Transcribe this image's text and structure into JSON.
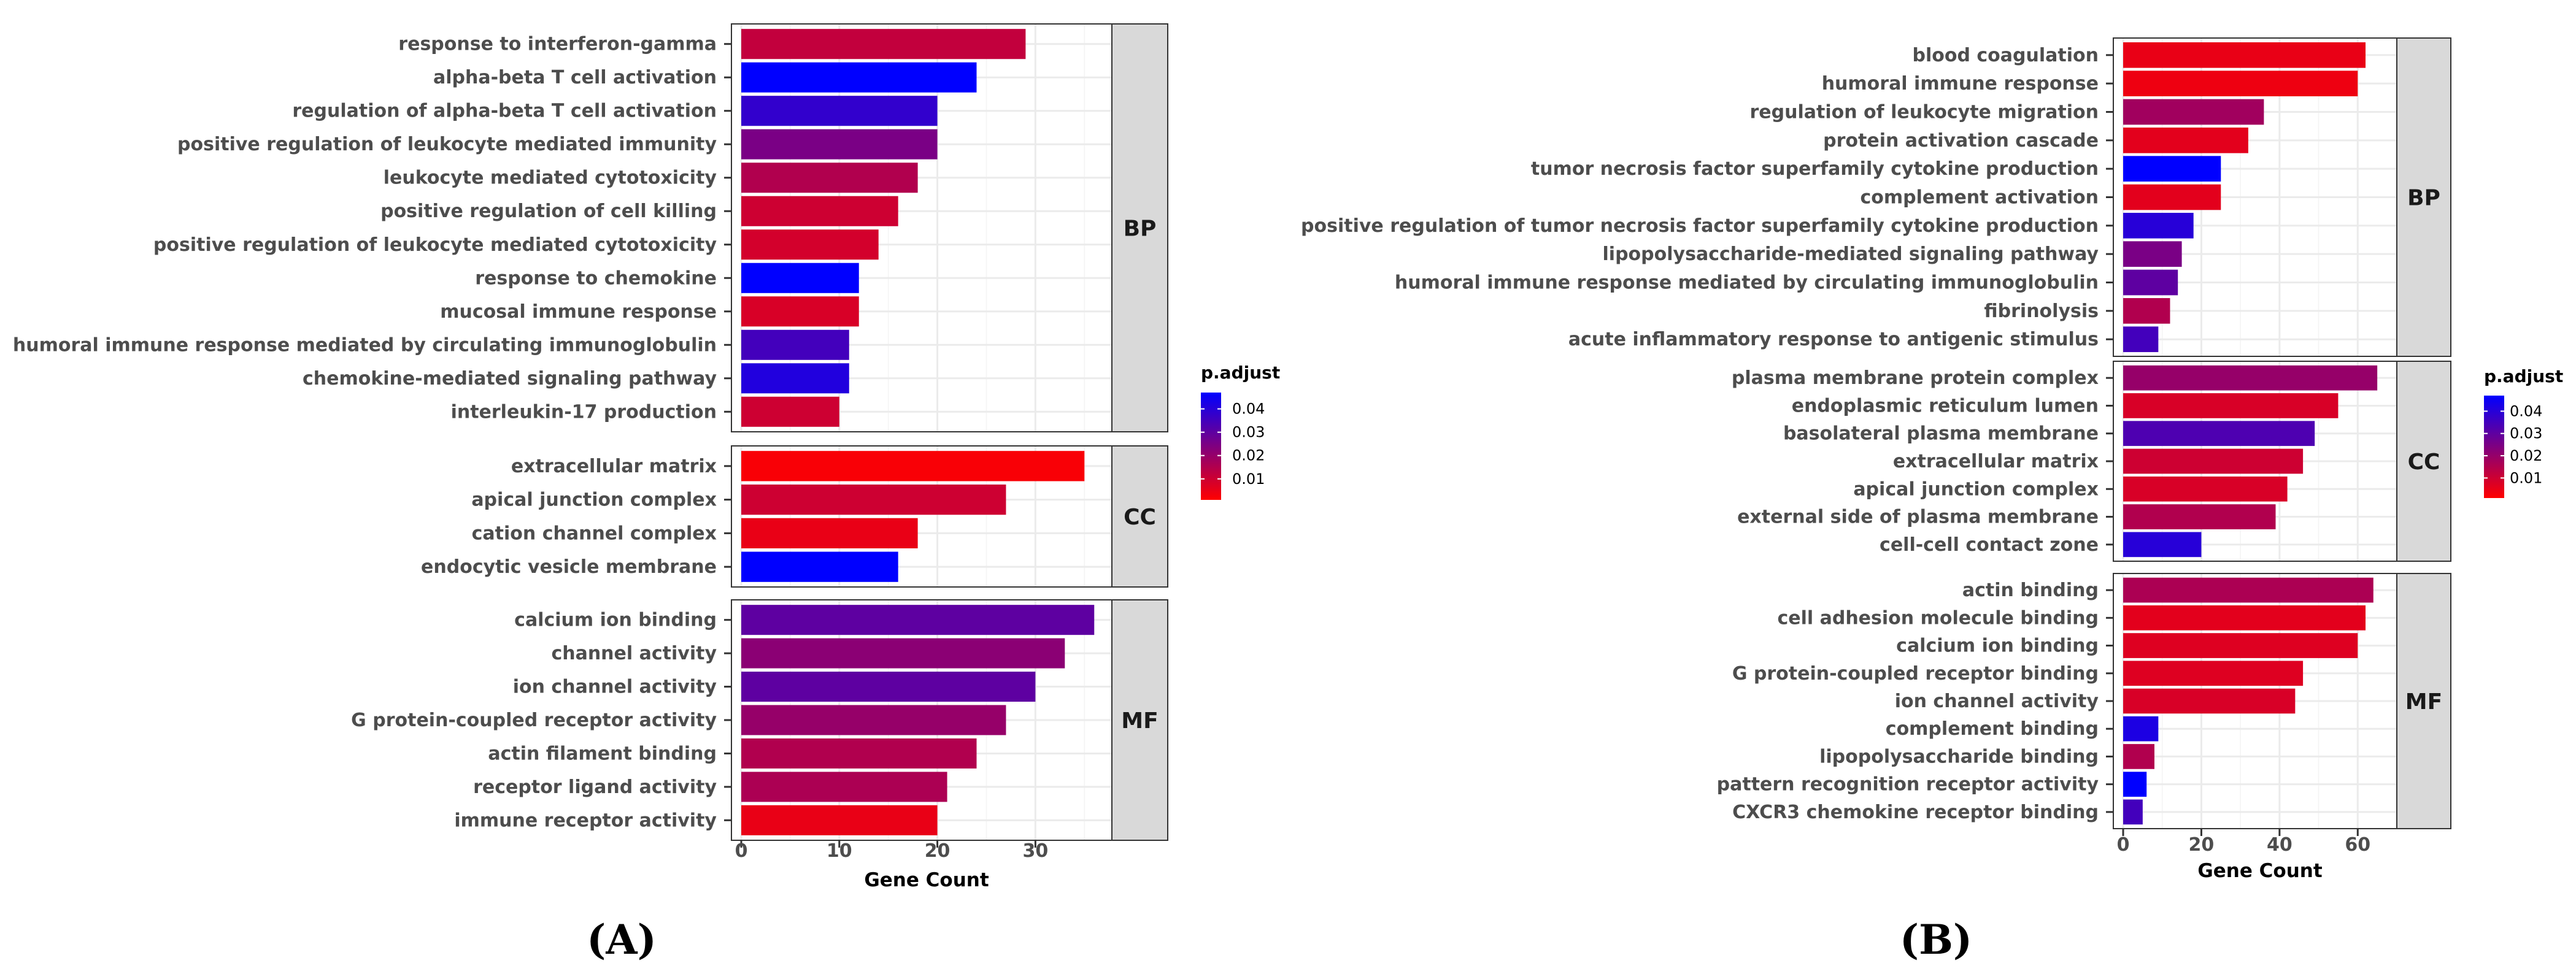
{
  "colors": {
    "low": "#ff0000",
    "high": "#0000ff",
    "strip_fill": "#d9d9d9"
  },
  "chart_data": [
    {
      "type": "bar",
      "panel_label": "(A)",
      "orientation": "horizontal",
      "xlabel": "Gene Count",
      "xlim": [
        0,
        37.8
      ],
      "xticks": [
        0,
        10,
        20,
        30
      ],
      "color_legend": {
        "title": "p.adjust",
        "ticks": [
          0.04,
          0.03,
          0.02,
          0.01
        ],
        "tick_labels": [
          "0.04",
          "0.03",
          "0.02",
          "0.01"
        ],
        "range": [
          0.001,
          0.047
        ]
      },
      "facets": [
        {
          "name": "BP",
          "categories": [
            {
              "label": "response to interferon-gamma",
              "value": 29,
              "p_adjust": 0.012
            },
            {
              "label": "alpha-beta T cell activation",
              "value": 24,
              "p_adjust": 0.047
            },
            {
              "label": "regulation of alpha-beta T cell activation",
              "value": 20,
              "p_adjust": 0.038
            },
            {
              "label": "positive regulation of leukocyte mediated immunity",
              "value": 20,
              "p_adjust": 0.025
            },
            {
              "label": "leukocyte mediated cytotoxicity",
              "value": 18,
              "p_adjust": 0.015
            },
            {
              "label": "positive regulation of cell killing",
              "value": 16,
              "p_adjust": 0.01
            },
            {
              "label": "positive regulation of leukocyte mediated cytotoxicity",
              "value": 14,
              "p_adjust": 0.009
            },
            {
              "label": "response to chemokine",
              "value": 12,
              "p_adjust": 0.047
            },
            {
              "label": "mucosal immune response",
              "value": 12,
              "p_adjust": 0.008
            },
            {
              "label": "humoral immune response mediated by circulating immunoglobulin",
              "value": 11,
              "p_adjust": 0.035
            },
            {
              "label": "chemokine-mediated signaling pathway",
              "value": 11,
              "p_adjust": 0.041
            },
            {
              "label": "interleukin-17 production",
              "value": 10,
              "p_adjust": 0.01
            }
          ]
        },
        {
          "name": "CC",
          "categories": [
            {
              "label": "extracellular matrix",
              "value": 35,
              "p_adjust": 0.002
            },
            {
              "label": "apical junction complex",
              "value": 27,
              "p_adjust": 0.01
            },
            {
              "label": "cation channel complex",
              "value": 18,
              "p_adjust": 0.005
            },
            {
              "label": "endocytic vesicle membrane",
              "value": 16,
              "p_adjust": 0.047
            }
          ]
        },
        {
          "name": "MF",
          "categories": [
            {
              "label": "calcium ion binding",
              "value": 36,
              "p_adjust": 0.03
            },
            {
              "label": "channel activity",
              "value": 33,
              "p_adjust": 0.022
            },
            {
              "label": "ion channel activity",
              "value": 30,
              "p_adjust": 0.03
            },
            {
              "label": "G protein-coupled receptor activity",
              "value": 27,
              "p_adjust": 0.02
            },
            {
              "label": "actin filament binding",
              "value": 24,
              "p_adjust": 0.015
            },
            {
              "label": "receptor ligand activity",
              "value": 21,
              "p_adjust": 0.016
            },
            {
              "label": "immune receptor activity",
              "value": 20,
              "p_adjust": 0.005
            }
          ]
        }
      ]
    },
    {
      "type": "bar",
      "panel_label": "(B)",
      "orientation": "horizontal",
      "xlabel": "Gene Count",
      "xlim": [
        0,
        70
      ],
      "xticks": [
        0,
        20,
        40,
        60
      ],
      "color_legend": {
        "title": "p.adjust",
        "ticks": [
          0.04,
          0.03,
          0.02,
          0.01
        ],
        "tick_labels": [
          "0.04",
          "0.03",
          "0.02",
          "0.01"
        ],
        "range": [
          0.001,
          0.047
        ]
      },
      "facets": [
        {
          "name": "BP",
          "categories": [
            {
              "label": "blood coagulation",
              "value": 62,
              "p_adjust": 0.005
            },
            {
              "label": "humoral immune response",
              "value": 60,
              "p_adjust": 0.004
            },
            {
              "label": "regulation of leukocyte migration",
              "value": 36,
              "p_adjust": 0.018
            },
            {
              "label": "protein activation cascade",
              "value": 32,
              "p_adjust": 0.006
            },
            {
              "label": "tumor necrosis factor superfamily cytokine production",
              "value": 25,
              "p_adjust": 0.047
            },
            {
              "label": "complement activation",
              "value": 25,
              "p_adjust": 0.006
            },
            {
              "label": "positive regulation of tumor necrosis factor superfamily cytokine production",
              "value": 18,
              "p_adjust": 0.04
            },
            {
              "label": "lipopolysaccharide-mediated signaling pathway",
              "value": 15,
              "p_adjust": 0.025
            },
            {
              "label": "humoral immune response mediated by circulating immunoglobulin",
              "value": 14,
              "p_adjust": 0.03
            },
            {
              "label": "fibrinolysis",
              "value": 12,
              "p_adjust": 0.015
            },
            {
              "label": "acute inflammatory response to antigenic stimulus",
              "value": 9,
              "p_adjust": 0.035
            }
          ]
        },
        {
          "name": "CC",
          "categories": [
            {
              "label": "plasma membrane protein complex",
              "value": 65,
              "p_adjust": 0.02
            },
            {
              "label": "endoplasmic reticulum lumen",
              "value": 55,
              "p_adjust": 0.008
            },
            {
              "label": "basolateral plasma membrane",
              "value": 49,
              "p_adjust": 0.033
            },
            {
              "label": "extracellular matrix",
              "value": 46,
              "p_adjust": 0.01
            },
            {
              "label": "apical junction complex",
              "value": 42,
              "p_adjust": 0.008
            },
            {
              "label": "external side of plasma membrane",
              "value": 39,
              "p_adjust": 0.015
            },
            {
              "label": "cell-cell contact zone",
              "value": 20,
              "p_adjust": 0.04
            }
          ]
        },
        {
          "name": "MF",
          "categories": [
            {
              "label": "actin binding",
              "value": 64,
              "p_adjust": 0.016
            },
            {
              "label": "cell adhesion molecule binding",
              "value": 62,
              "p_adjust": 0.006
            },
            {
              "label": "calcium ion binding",
              "value": 60,
              "p_adjust": 0.007
            },
            {
              "label": "G protein-coupled receptor binding",
              "value": 46,
              "p_adjust": 0.007
            },
            {
              "label": "ion channel activity",
              "value": 44,
              "p_adjust": 0.008
            },
            {
              "label": "complement binding",
              "value": 9,
              "p_adjust": 0.042
            },
            {
              "label": "lipopolysaccharide binding",
              "value": 8,
              "p_adjust": 0.015
            },
            {
              "label": "pattern recognition receptor activity",
              "value": 6,
              "p_adjust": 0.047
            },
            {
              "label": "CXCR3 chemokine receptor binding",
              "value": 5,
              "p_adjust": 0.035
            }
          ]
        }
      ]
    }
  ]
}
